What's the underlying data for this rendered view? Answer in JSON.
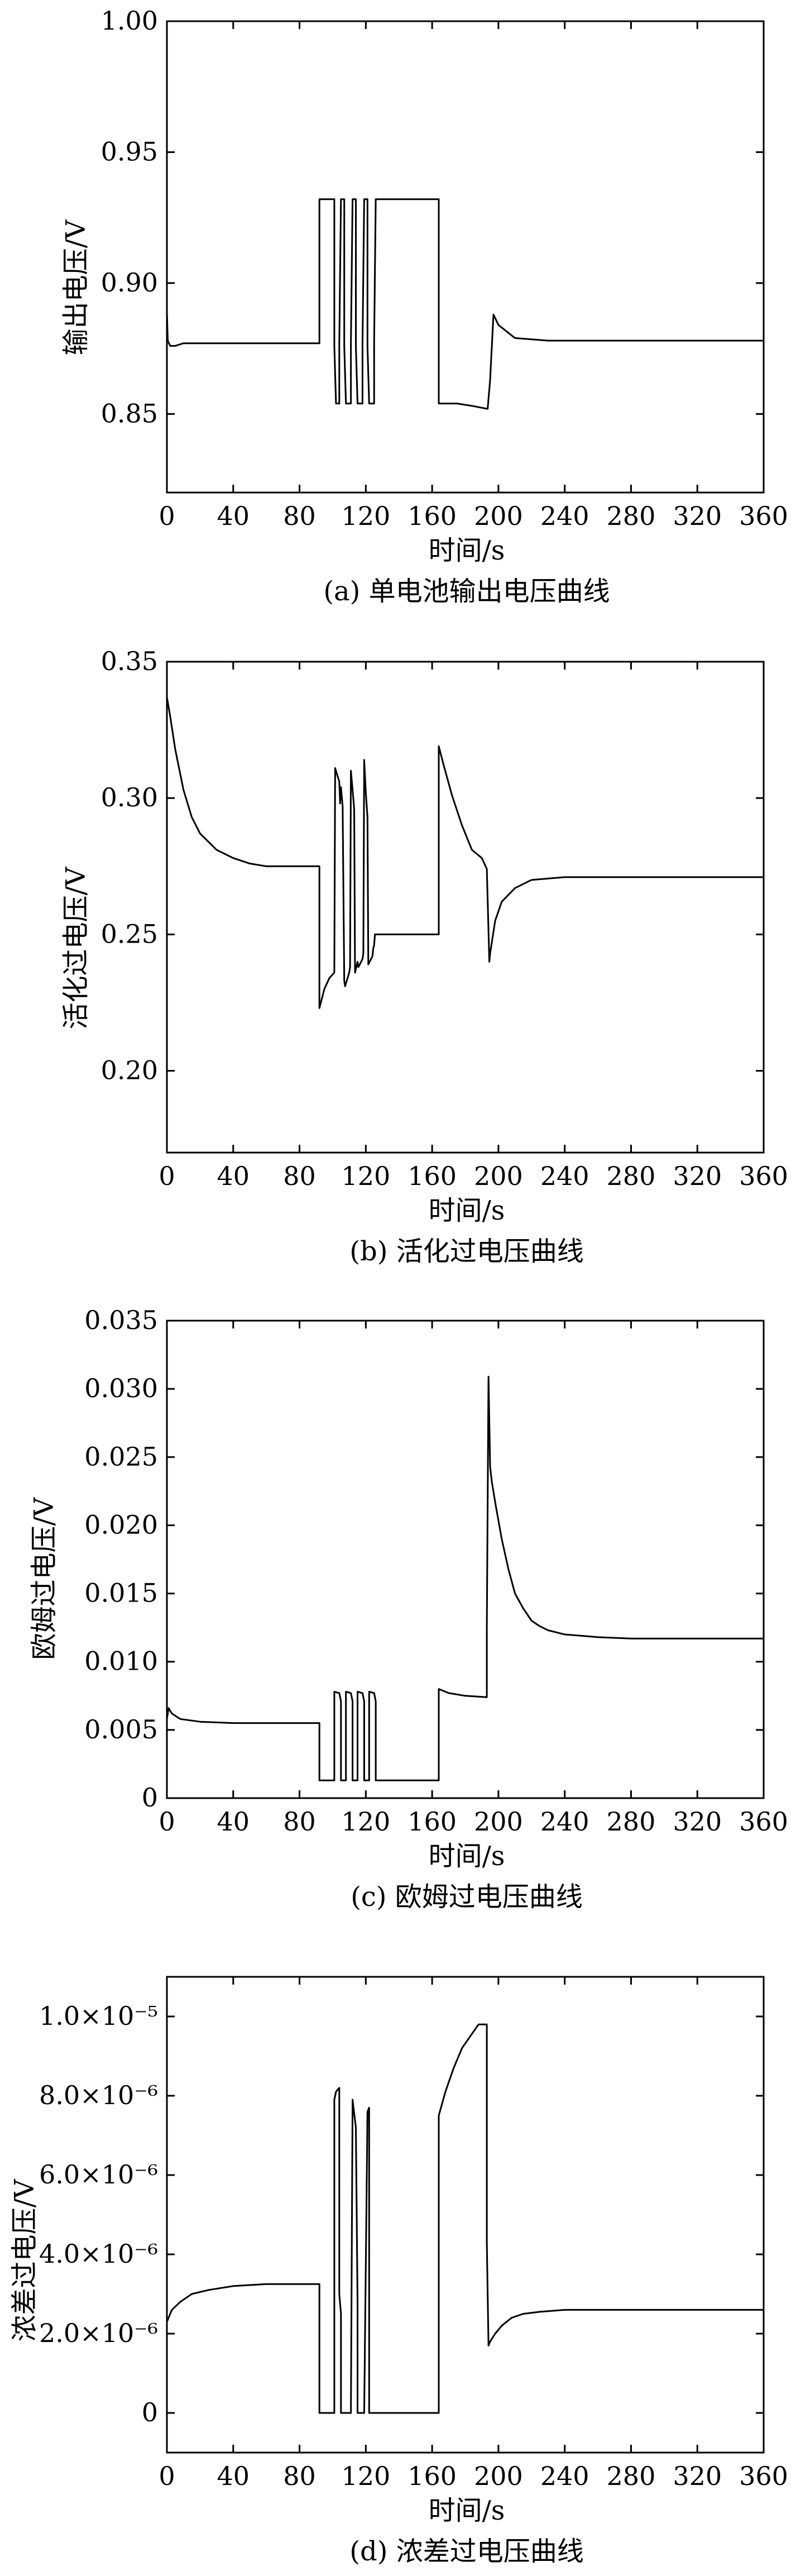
{
  "chart_data": [
    {
      "type": "line",
      "caption": "(a) 单电池输出电压曲线",
      "xlabel": "时间/s",
      "ylabel": "输出电压/V",
      "xlim": [
        0,
        360
      ],
      "ylim": [
        0.82,
        1.0
      ],
      "xticks": [
        0,
        40,
        80,
        120,
        160,
        200,
        240,
        280,
        320,
        360
      ],
      "xtick_labels": [
        "0",
        "40",
        "80",
        "120",
        "160",
        "200",
        "240",
        "280",
        "320",
        "360"
      ],
      "yticks": [
        0.85,
        0.9,
        0.95,
        1.0
      ],
      "ytick_labels": [
        "0.85",
        "0.90",
        "0.95",
        "1.00"
      ],
      "grid": false,
      "series": [
        {
          "x": [
            0,
            0.5,
            2,
            5,
            10,
            20,
            40,
            80,
            92,
            92,
            101,
            101,
            102,
            102.5,
            104,
            104,
            105,
            105.5,
            107,
            107,
            108,
            108.5,
            111,
            111,
            112,
            112.5,
            114,
            114,
            115,
            115.5,
            118,
            118,
            119,
            119.5,
            121,
            121,
            122,
            122.5,
            125,
            125,
            126,
            126.5,
            164,
            164,
            175,
            185,
            193,
            193.5,
            195,
            195,
            197,
            200,
            210,
            230,
            260,
            300,
            360
          ],
          "y": [
            0.889,
            0.878,
            0.876,
            0.876,
            0.877,
            0.877,
            0.877,
            0.877,
            0.877,
            0.932,
            0.932,
            0.876,
            0.854,
            0.854,
            0.854,
            0.877,
            0.932,
            0.932,
            0.932,
            0.876,
            0.854,
            0.854,
            0.854,
            0.877,
            0.932,
            0.932,
            0.932,
            0.876,
            0.854,
            0.854,
            0.854,
            0.877,
            0.932,
            0.932,
            0.932,
            0.876,
            0.854,
            0.854,
            0.854,
            0.877,
            0.932,
            0.932,
            0.932,
            0.854,
            0.854,
            0.853,
            0.852,
            0.852,
            0.863,
            0.863,
            0.888,
            0.884,
            0.879,
            0.878,
            0.878,
            0.878,
            0.878
          ]
        }
      ]
    },
    {
      "type": "line",
      "caption": "(b) 活化过电压曲线",
      "xlabel": "时间/s",
      "ylabel": "活化过电压/V",
      "xlim": [
        0,
        360
      ],
      "ylim": [
        0.17,
        0.35
      ],
      "xticks": [
        0,
        40,
        80,
        120,
        160,
        200,
        240,
        280,
        320,
        360
      ],
      "xtick_labels": [
        "0",
        "40",
        "80",
        "120",
        "160",
        "200",
        "240",
        "280",
        "320",
        "360"
      ],
      "yticks": [
        0.2,
        0.25,
        0.3,
        0.35
      ],
      "ytick_labels": [
        "0.20",
        "0.25",
        "0.30",
        "0.35"
      ],
      "grid": false,
      "series": [
        {
          "x": [
            0,
            2,
            5,
            10,
            15,
            20,
            30,
            40,
            50,
            60,
            70,
            80,
            92,
            92,
            95,
            98,
            101,
            101.5,
            104,
            104.5,
            105,
            106,
            107,
            107.5,
            110,
            110.5,
            111,
            112,
            113,
            113.5,
            115,
            115.5,
            118,
            118.5,
            119,
            120,
            121,
            121.5,
            124,
            124.5,
            125,
            125.5,
            127,
            130,
            140,
            150,
            164,
            164,
            167,
            172,
            178,
            184,
            190,
            193,
            194.5,
            195,
            198,
            202,
            210,
            220,
            240,
            260,
            280,
            300,
            360
          ],
          "y": [
            0.337,
            0.33,
            0.318,
            0.303,
            0.293,
            0.287,
            0.281,
            0.278,
            0.276,
            0.275,
            0.275,
            0.275,
            0.275,
            0.223,
            0.23,
            0.234,
            0.236,
            0.311,
            0.306,
            0.298,
            0.304,
            0.297,
            0.233,
            0.231,
            0.236,
            0.238,
            0.31,
            0.303,
            0.296,
            0.236,
            0.24,
            0.238,
            0.241,
            0.243,
            0.314,
            0.302,
            0.293,
            0.239,
            0.242,
            0.245,
            0.246,
            0.25,
            0.25,
            0.25,
            0.25,
            0.25,
            0.25,
            0.319,
            0.312,
            0.301,
            0.29,
            0.281,
            0.278,
            0.274,
            0.24,
            0.243,
            0.255,
            0.262,
            0.267,
            0.27,
            0.271,
            0.271,
            0.271,
            0.271,
            0.271
          ]
        }
      ]
    },
    {
      "type": "line",
      "caption": "(c) 欧姆过电压曲线",
      "xlabel": "时间/s",
      "ylabel": "欧姆过电压/V",
      "xlim": [
        0,
        360
      ],
      "ylim": [
        0,
        0.035
      ],
      "xticks": [
        0,
        40,
        80,
        120,
        160,
        200,
        240,
        280,
        320,
        360
      ],
      "xtick_labels": [
        "0",
        "40",
        "80",
        "120",
        "160",
        "200",
        "240",
        "280",
        "320",
        "360"
      ],
      "yticks": [
        0,
        0.005,
        0.01,
        0.015,
        0.02,
        0.025,
        0.03,
        0.035
      ],
      "ytick_labels": [
        "0",
        "0.005",
        "0.010",
        "0.015",
        "0.020",
        "0.025",
        "0.030",
        "0.035"
      ],
      "grid": false,
      "series": [
        {
          "x": [
            0,
            1,
            3,
            8,
            20,
            40,
            80,
            92,
            92,
            100,
            101,
            101,
            104,
            105,
            105,
            107,
            108,
            108,
            111,
            112,
            112,
            114,
            115,
            115,
            118,
            119,
            119,
            121,
            122,
            122,
            125,
            126,
            126,
            164,
            164,
            170,
            180,
            193,
            193,
            194,
            195,
            196,
            198,
            202,
            206,
            210,
            215,
            220,
            225,
            230,
            240,
            250,
            260,
            280,
            300,
            360
          ],
          "y": [
            0.0058,
            0.0066,
            0.0062,
            0.0058,
            0.0056,
            0.0055,
            0.0055,
            0.0055,
            0.0013,
            0.0013,
            0.0013,
            0.0078,
            0.0077,
            0.0071,
            0.0013,
            0.0013,
            0.0013,
            0.0078,
            0.0077,
            0.0071,
            0.0013,
            0.0013,
            0.0013,
            0.0078,
            0.0077,
            0.0071,
            0.0013,
            0.0013,
            0.0013,
            0.0078,
            0.0077,
            0.0071,
            0.0013,
            0.0013,
            0.008,
            0.0077,
            0.0075,
            0.0074,
            0.0125,
            0.0309,
            0.0243,
            0.0232,
            0.0217,
            0.019,
            0.0168,
            0.015,
            0.0139,
            0.013,
            0.0126,
            0.0123,
            0.012,
            0.0119,
            0.0118,
            0.0117,
            0.0117,
            0.0117
          ]
        }
      ]
    },
    {
      "type": "line",
      "caption": "(d) 浓差过电压曲线",
      "xlabel": "时间/s",
      "ylabel": "浓差过电压/V",
      "xlim": [
        0,
        360
      ],
      "ylim": [
        -1e-06,
        1.1e-05
      ],
      "xticks": [
        0,
        40,
        80,
        120,
        160,
        200,
        240,
        280,
        320,
        360
      ],
      "xtick_labels": [
        "0",
        "40",
        "80",
        "120",
        "160",
        "200",
        "240",
        "280",
        "320",
        "360"
      ],
      "yticks": [
        0,
        2e-06,
        4e-06,
        6e-06,
        8e-06,
        1e-05
      ],
      "ytick_labels": [
        "0",
        "2.0×10⁻⁶",
        "4.0×10⁻⁶",
        "6.0×10⁻⁶",
        "8.0×10⁻⁶",
        "1.0×10⁻⁵"
      ],
      "grid": false,
      "series": [
        {
          "x": [
            0,
            3,
            8,
            15,
            25,
            40,
            60,
            80,
            92,
            92,
            100,
            101,
            101,
            102,
            104,
            104,
            105,
            105,
            107,
            108,
            108,
            110,
            111,
            111,
            112,
            112,
            114,
            115,
            115,
            118,
            119,
            119,
            121,
            122,
            122,
            125,
            126,
            126,
            164,
            164,
            168,
            173,
            178,
            183,
            188,
            193,
            193,
            194,
            195,
            198,
            202,
            208,
            215,
            225,
            240,
            260,
            300,
            360
          ],
          "y": [
            2.3e-06,
            2.6e-06,
            2.8e-06,
            3e-06,
            3.1e-06,
            3.2e-06,
            3.25e-06,
            3.25e-06,
            3.25e-06,
            0,
            0,
            0,
            7.9e-06,
            8.1e-06,
            8.2e-06,
            3e-06,
            2.5e-06,
            0,
            0,
            0,
            0,
            0,
            0,
            0,
            7.8e-06,
            7.9e-06,
            7.2e-06,
            2.8e-06,
            0,
            0,
            0,
            0,
            7.6e-06,
            7.7e-06,
            0,
            0,
            0,
            0,
            0,
            7.5e-06,
            8.1e-06,
            8.7e-06,
            9.2e-06,
            9.5e-06,
            9.8e-06,
            9.8e-06,
            4.3e-06,
            1.7e-06,
            1.8e-06,
            2e-06,
            2.2e-06,
            2.4e-06,
            2.5e-06,
            2.55e-06,
            2.6e-06,
            2.6e-06,
            2.6e-06,
            2.6e-06
          ]
        }
      ]
    }
  ]
}
